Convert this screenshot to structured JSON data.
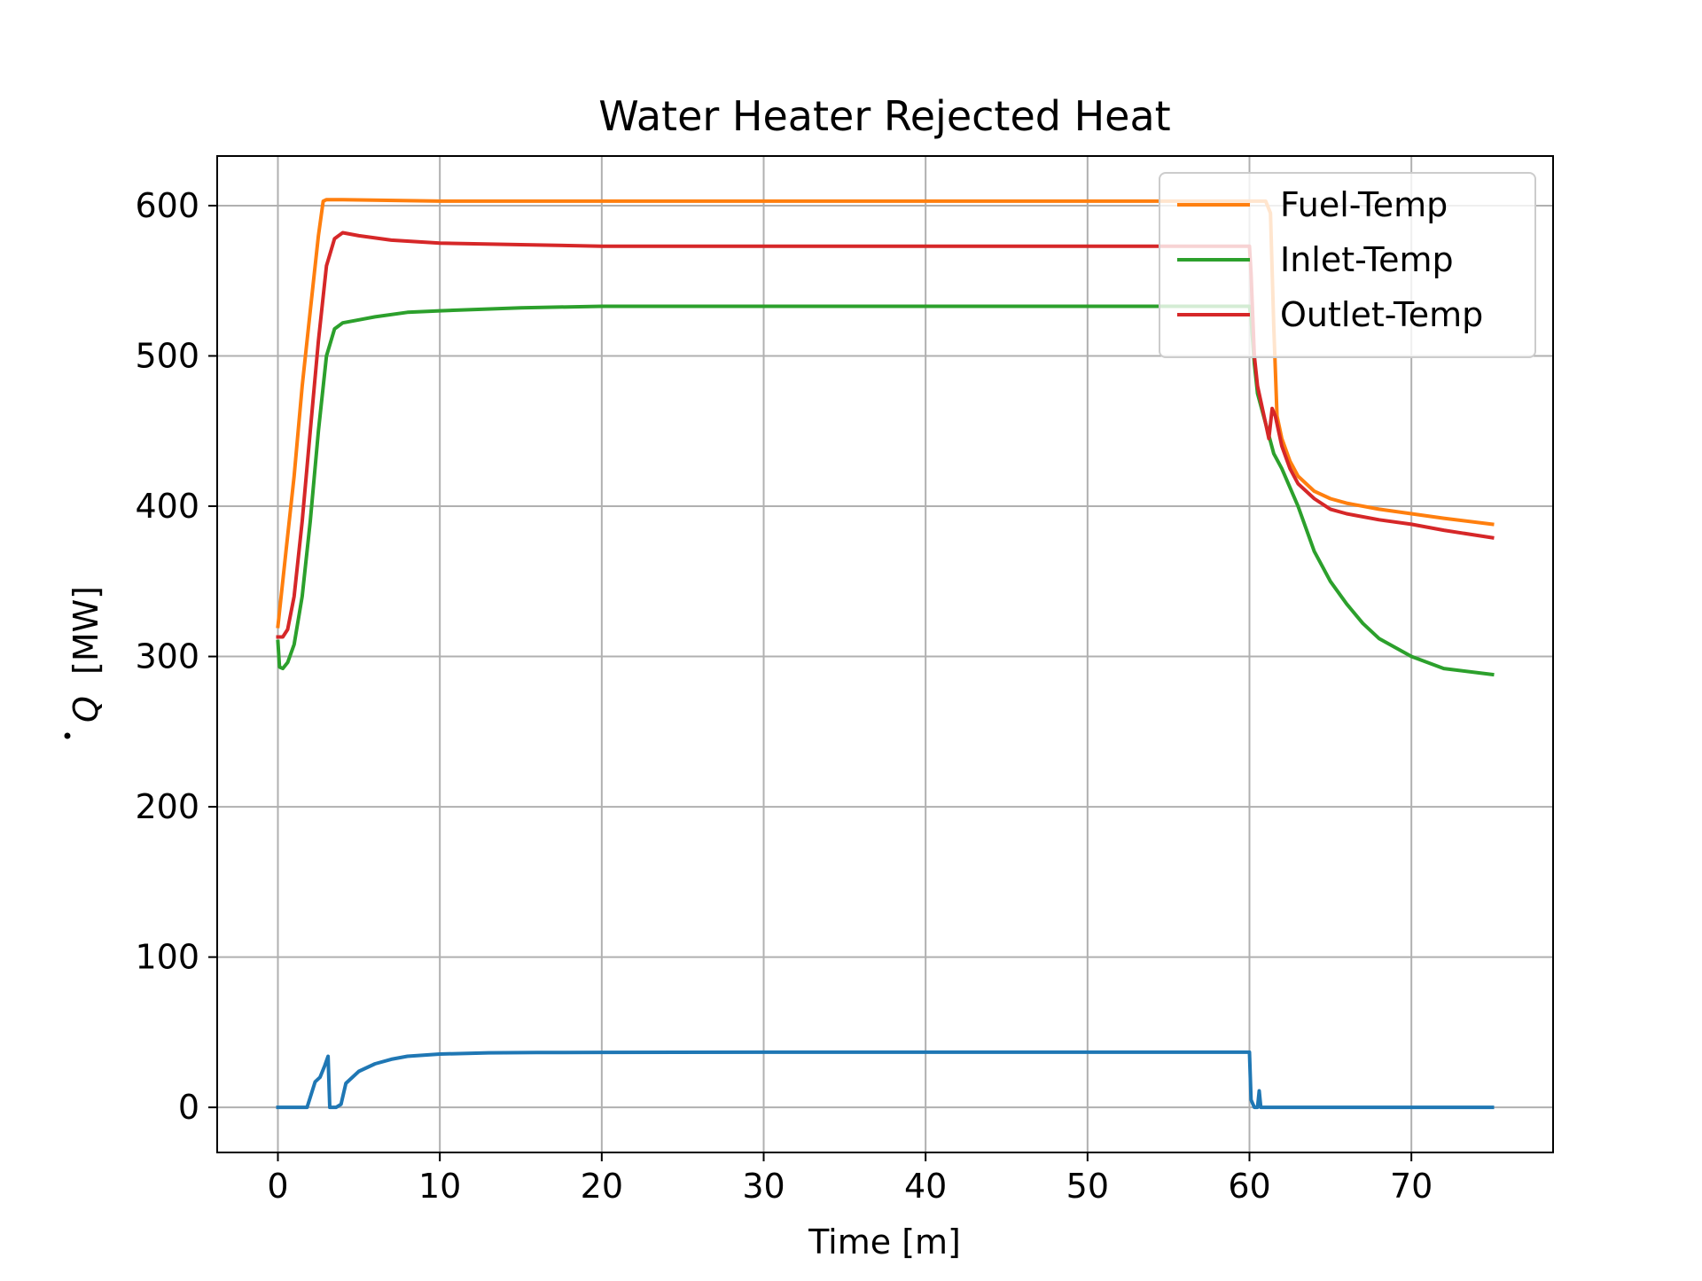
{
  "chart_data": {
    "type": "line",
    "title": "Water Heater Rejected Heat",
    "xlabel": "Time [m]",
    "ylabel_symbol": "Q",
    "ylabel_unit": "[MW]",
    "xlim": [
      -3.75,
      78.75
    ],
    "ylim": [
      -30,
      633
    ],
    "xticks": [
      0,
      10,
      20,
      30,
      40,
      50,
      60,
      70
    ],
    "yticks": [
      0,
      100,
      200,
      300,
      400,
      500,
      600
    ],
    "grid": true,
    "legend_position": "top-right",
    "legend_entries": [
      "series_fuel",
      "series_inlet",
      "series_outlet"
    ],
    "series": [
      {
        "key": "series_blue",
        "name": "",
        "color": "#1f77b4",
        "x": [
          0,
          1.8,
          2.3,
          2.6,
          2.9,
          3.1,
          3.2,
          3.3,
          3.6,
          3.9,
          4.2,
          5,
          6,
          7,
          8,
          10,
          13,
          16,
          20,
          30,
          40,
          50,
          59,
          60,
          60.1,
          60.3,
          60.5,
          60.6,
          60.7,
          61,
          65,
          70,
          75
        ],
        "y": [
          0,
          0,
          17,
          20,
          28,
          34,
          0,
          0,
          0,
          2,
          16,
          24,
          29,
          32,
          34,
          35.5,
          36.3,
          36.5,
          36.6,
          36.7,
          36.7,
          36.7,
          36.7,
          36.7,
          5,
          0,
          0,
          11,
          0,
          0,
          0,
          0,
          0
        ]
      },
      {
        "key": "series_fuel",
        "name": "Fuel-Temp",
        "color": "#ff7f0e",
        "x": [
          0,
          0.5,
          1,
          1.5,
          2,
          2.5,
          2.8,
          3,
          4,
          10,
          30,
          50,
          60,
          61,
          61.3,
          61.5,
          61.7,
          62,
          62.5,
          63,
          64,
          65,
          66,
          68,
          70,
          72,
          75
        ],
        "y": [
          320,
          370,
          420,
          480,
          530,
          580,
          603,
          604,
          604,
          603,
          603,
          603,
          603,
          603,
          595,
          520,
          460,
          445,
          430,
          420,
          410,
          405,
          402,
          398,
          395,
          392,
          388
        ]
      },
      {
        "key": "series_inlet",
        "name": "Inlet-Temp",
        "color": "#2ca02c",
        "x": [
          0,
          0.1,
          0.3,
          0.6,
          1,
          1.5,
          2,
          2.5,
          3,
          3.5,
          4,
          5,
          6,
          8,
          10,
          15,
          20,
          30,
          40,
          50,
          59,
          60,
          60.1,
          60.3,
          60.5,
          61,
          61.5,
          62,
          63,
          64,
          65,
          66,
          67,
          68,
          70,
          72,
          75
        ],
        "y": [
          310,
          293,
          292,
          296,
          308,
          340,
          390,
          450,
          500,
          518,
          522,
          524,
          526,
          529,
          530,
          532,
          533,
          533,
          533,
          533,
          533,
          533,
          525,
          495,
          475,
          455,
          435,
          425,
          400,
          370,
          350,
          335,
          322,
          312,
          300,
          292,
          288
        ]
      },
      {
        "key": "series_outlet",
        "name": "Outlet-Temp",
        "color": "#d62728",
        "x": [
          0,
          0.3,
          0.6,
          1,
          1.5,
          2,
          2.5,
          3,
          3.5,
          4,
          5,
          7,
          10,
          15,
          20,
          30,
          40,
          50,
          59,
          60,
          60.1,
          60.3,
          60.5,
          61,
          61.2,
          61.4,
          61.6,
          62,
          62.5,
          63,
          64,
          65,
          66,
          68,
          70,
          72,
          75
        ],
        "y": [
          313,
          313,
          318,
          340,
          390,
          450,
          510,
          560,
          578,
          582,
          580,
          577,
          575,
          574,
          573,
          573,
          573,
          573,
          573,
          573,
          555,
          500,
          480,
          455,
          445,
          465,
          460,
          440,
          425,
          415,
          405,
          398,
          395,
          391,
          388,
          384,
          379
        ]
      }
    ]
  }
}
